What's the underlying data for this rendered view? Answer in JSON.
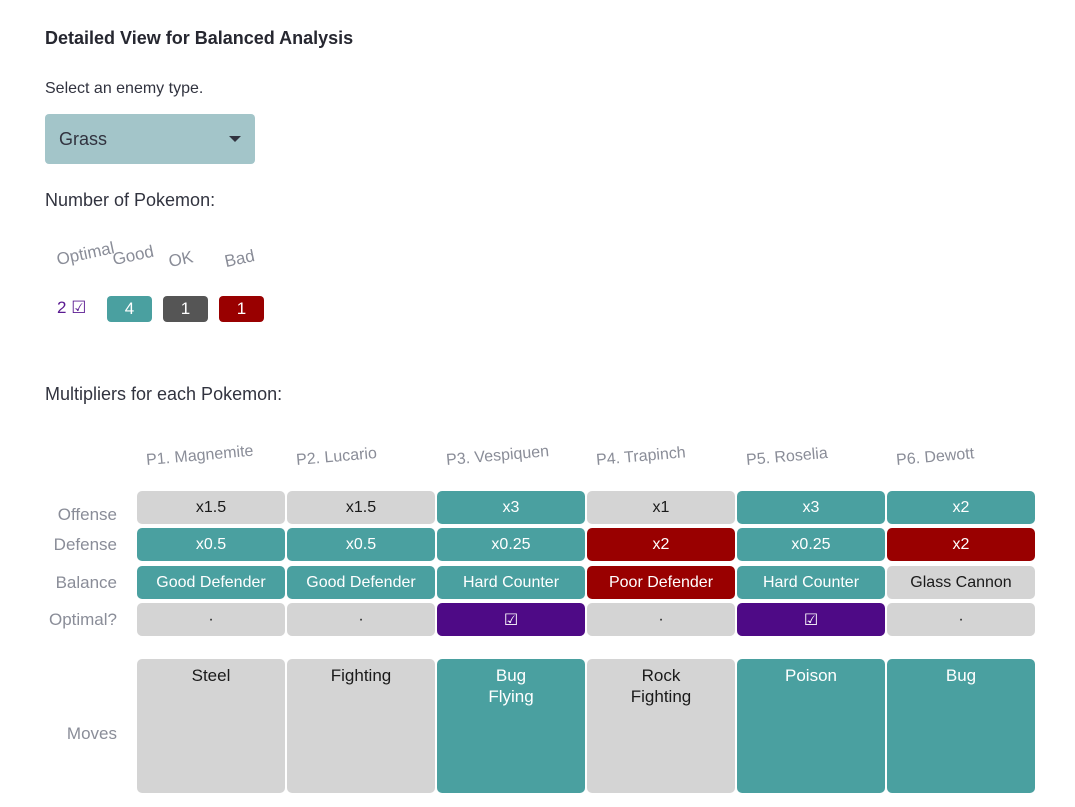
{
  "heading": "Detailed View for Balanced Analysis",
  "select_label": "Select an enemy type.",
  "enemy_select": {
    "value": "Grass"
  },
  "count_section": {
    "label": "Number of Pokemon:",
    "categories": [
      "Optimal",
      "Good",
      "OK",
      "Bad"
    ],
    "optimal_count": "2",
    "optimal_mark": "☑",
    "good_count": "4",
    "ok_count": "1",
    "bad_count": "1",
    "colors": {
      "optimal": "#5a1a91",
      "good": "#4aa0a0",
      "ok": "#555555",
      "bad": "#990000"
    }
  },
  "multipliers_label": "Multipliers for each Pokemon:",
  "row_labels": {
    "offense": "Offense",
    "defense": "Defense",
    "balance": "Balance",
    "optimal": "Optimal?",
    "moves": "Moves"
  },
  "pokemon": [
    {
      "name": "P1. Magnemite",
      "offense": "x1.5",
      "offense_color": "grey",
      "defense": "x0.5",
      "defense_color": "teal",
      "balance": "Good Defender",
      "balance_color": "teal",
      "optimal": "·",
      "optimal_color": "grey",
      "moves": [
        "Steel"
      ],
      "moves_color": "grey"
    },
    {
      "name": "P2. Lucario",
      "offense": "x1.5",
      "offense_color": "grey",
      "defense": "x0.5",
      "defense_color": "teal",
      "balance": "Good Defender",
      "balance_color": "teal",
      "optimal": "·",
      "optimal_color": "grey",
      "moves": [
        "Fighting"
      ],
      "moves_color": "grey"
    },
    {
      "name": "P3. Vespiquen",
      "offense": "x3",
      "offense_color": "teal",
      "defense": "x0.25",
      "defense_color": "teal",
      "balance": "Hard Counter",
      "balance_color": "teal",
      "optimal": "☑",
      "optimal_color": "purple",
      "moves": [
        "Bug",
        "Flying"
      ],
      "moves_color": "teal"
    },
    {
      "name": "P4. Trapinch",
      "offense": "x1",
      "offense_color": "grey",
      "defense": "x2",
      "defense_color": "red",
      "balance": "Poor Defender",
      "balance_color": "red",
      "optimal": "·",
      "optimal_color": "grey",
      "moves": [
        "Rock",
        "Fighting"
      ],
      "moves_color": "grey"
    },
    {
      "name": "P5. Roselia",
      "offense": "x3",
      "offense_color": "teal",
      "defense": "x0.25",
      "defense_color": "teal",
      "balance": "Hard Counter",
      "balance_color": "teal",
      "optimal": "☑",
      "optimal_color": "purple",
      "moves": [
        "Poison"
      ],
      "moves_color": "teal"
    },
    {
      "name": "P6. Dewott",
      "offense": "x2",
      "offense_color": "teal",
      "defense": "x2",
      "defense_color": "red",
      "balance": "Glass Cannon",
      "balance_color": "grey",
      "optimal": "·",
      "optimal_color": "grey",
      "moves": [
        "Bug"
      ],
      "moves_color": "teal"
    }
  ]
}
